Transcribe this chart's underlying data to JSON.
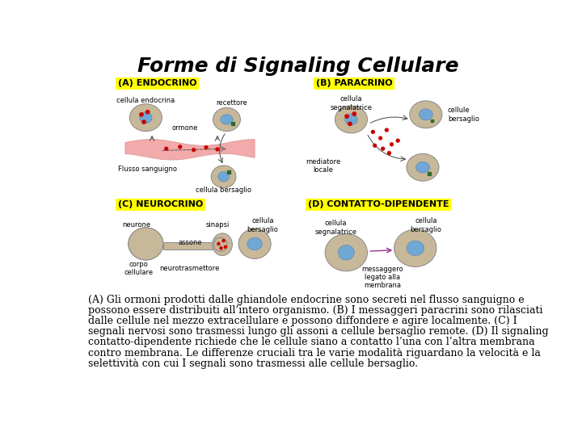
{
  "title": "Forme di Signaling Cellulare",
  "title_fontsize": 18,
  "title_fontweight": "bold",
  "bg_color": "#ffffff",
  "label_bg": "#ffff00",
  "label_A": "(A) ENDOCRINO",
  "label_B": "(B) PARACRINO",
  "label_C": "(C) NEUROCRINO",
  "label_D": "(D) CONTATTO-DIPENDENTE",
  "cell_color": "#c8b89a",
  "nuc_color": "#6fa8d4",
  "blood_color": "#f2aaaa",
  "red_dot": "#cc0000",
  "green_color": "#2d6a2d",
  "arrow_color": "#333333",
  "body_text_line1": "(A) Gli ormoni prodotti dalle ghiandole endocrine sono secreti nel flusso sanguigno e",
  "body_text_line2": "possono essere distribuiti all’intero organismo. (B) I messaggeri paracrini sono rilasciati",
  "body_text_line3": "dalle cellule nel mezzo extracellulare e possono diffondere e agire localmente. (C) I",
  "body_text_line4": "segnali nervosi sono trasmessi lungo gli assoni a cellule bersaglio remote. (D) Il signaling",
  "body_text_line5": "contatto-dipendente richiede che le cellule siano a contatto l’una con l’altra membrana",
  "body_text_line6": "contro membrana. Le differenze cruciali tra le varie modalità riguardano la velocità e la",
  "body_text_line7": "selettività con cui I segnali sono trasmessi alle cellule bersaglio.",
  "body_fontsize": 9,
  "small_fs": 6,
  "section_fs": 8
}
